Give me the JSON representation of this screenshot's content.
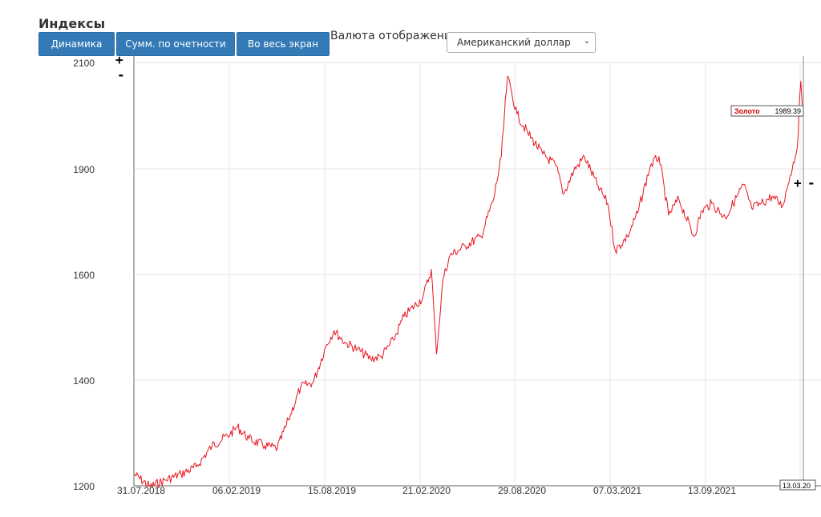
{
  "header": {
    "title": "Индексы"
  },
  "toolbar": {
    "dynamics_label": "Динамика",
    "cumulative_label": "Сумм. по очетности",
    "fullscreen_label": "Во весь экран"
  },
  "currency": {
    "label": "Валюта отображения",
    "selected": "Американский доллар"
  },
  "zoom": {
    "plus": "+",
    "minus": "-"
  },
  "colors": {
    "series": "#e8141e",
    "grid": "#e6e6e6",
    "axis": "#666666",
    "tooltip_name": "#cc0000"
  },
  "chart_data": {
    "type": "line",
    "title": "",
    "xlabel": "",
    "ylabel": "",
    "ylim": [
      1200,
      2100
    ],
    "yticks": [
      1200,
      1400,
      1600,
      1900,
      2100
    ],
    "xticks": [
      "31.07.2018",
      "06.02.2019",
      "15.08.2019",
      "21.02.2020",
      "29.08.2020",
      "07.03.2021",
      "13.09.2021"
    ],
    "x_end_label": "13.03.20",
    "grid": true,
    "legend": "none",
    "tooltip": {
      "series": "Золото",
      "value": "1989.39"
    },
    "series": [
      {
        "name": "Золото",
        "x": [
          "2018-07-31",
          "2018-09-01",
          "2018-10-01",
          "2018-11-01",
          "2018-12-01",
          "2019-01-01",
          "2019-02-06",
          "2019-02-20",
          "2019-03-15",
          "2019-04-15",
          "2019-05-10",
          "2019-06-01",
          "2019-06-25",
          "2019-07-20",
          "2019-08-15",
          "2019-08-30",
          "2019-09-20",
          "2019-10-15",
          "2019-11-10",
          "2019-12-01",
          "2019-12-25",
          "2020-01-15",
          "2020-02-21",
          "2020-03-09",
          "2020-03-19",
          "2020-04-01",
          "2020-04-15",
          "2020-05-15",
          "2020-06-15",
          "2020-07-10",
          "2020-07-25",
          "2020-08-06",
          "2020-08-25",
          "2020-09-15",
          "2020-10-15",
          "2020-11-10",
          "2020-11-25",
          "2020-12-15",
          "2021-01-05",
          "2021-01-30",
          "2021-02-20",
          "2021-03-07",
          "2021-03-31",
          "2021-04-20",
          "2021-05-15",
          "2021-06-01",
          "2021-06-20",
          "2021-07-10",
          "2021-08-09",
          "2021-08-25",
          "2021-09-13",
          "2021-10-10",
          "2021-11-15",
          "2021-12-01",
          "2021-12-20",
          "2022-01-10",
          "2022-01-31",
          "2022-02-15",
          "2022-03-01",
          "2022-03-08",
          "2022-03-13"
        ],
        "values": [
          1225,
          1198,
          1212,
          1225,
          1240,
          1285,
          1310,
          1325,
          1300,
          1285,
          1280,
          1340,
          1410,
          1420,
          1500,
          1530,
          1505,
          1490,
          1470,
          1475,
          1510,
          1560,
          1600,
          1660,
          1480,
          1640,
          1690,
          1710,
          1730,
          1810,
          1900,
          2070,
          1990,
          1950,
          1905,
          1880,
          1820,
          1870,
          1900,
          1840,
          1800,
          1700,
          1730,
          1780,
          1880,
          1900,
          1775,
          1810,
          1730,
          1785,
          1800,
          1770,
          1840,
          1790,
          1800,
          1815,
          1795,
          1860,
          1920,
          2060,
          1989.39
        ]
      }
    ]
  }
}
